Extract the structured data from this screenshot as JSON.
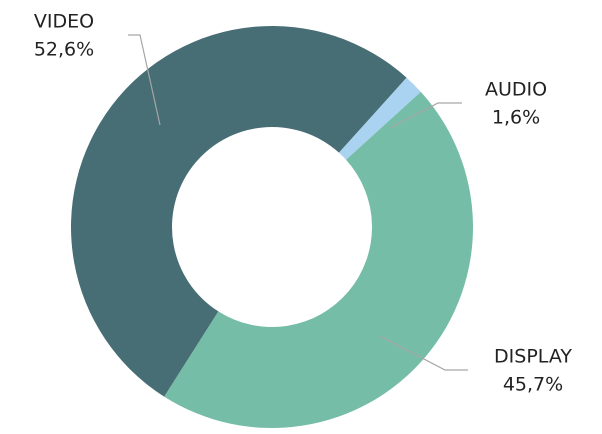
{
  "chart_data": {
    "type": "donut",
    "categories": [
      "AUDIO",
      "DISPLAY",
      "VIDEO"
    ],
    "values": [
      1.6,
      45.7,
      52.6
    ],
    "value_labels": [
      "1,6%",
      "45,7%",
      "52,6%"
    ],
    "colors": [
      "#a9d3f1",
      "#76bda8",
      "#476d75"
    ]
  }
}
